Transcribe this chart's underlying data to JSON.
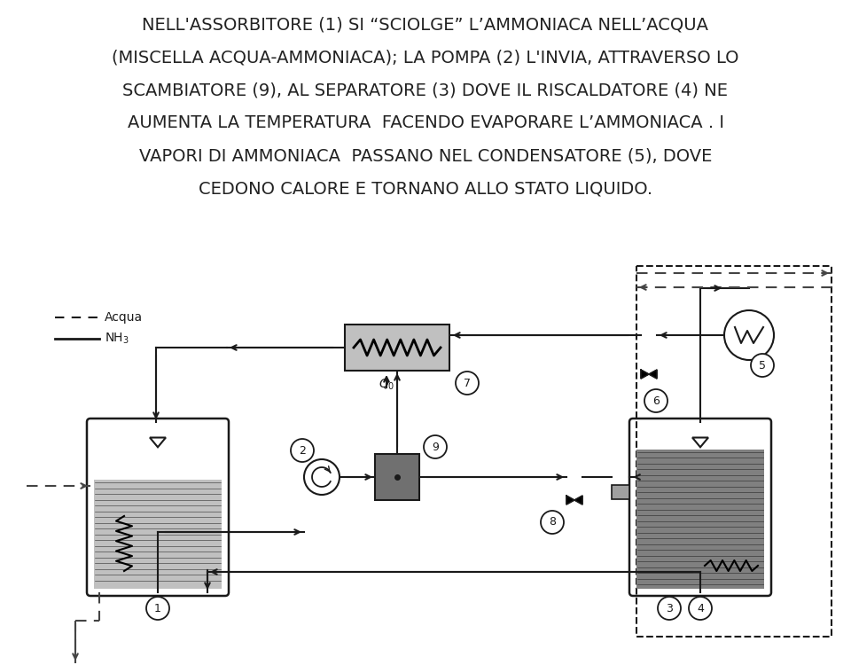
{
  "title_lines": [
    "NELL'ASSORBITORE (1) SI “SCIOLGE” L’AMMONIACA NELL’ACQUA",
    "(MISCELLA ACQUA-AMMONIACA); LA POMPA (2) L'INVIA, ATTRAVERSO LO",
    "SCAMBIATORE (9), AL SEPARATORE (3) DOVE IL RISCALDATORE (4) NE",
    "AUMENTA LA TEMPERATURA  FACENDO EVAPORARE L’AMMONIACA . I",
    "VAPORI DI AMMONIACA  PASSANO NEL CONDENSATORE (5), DOVE",
    "CEDONO CALORE E TORNANO ALLO STATO LIQUIDO."
  ],
  "bg_color": "#ffffff",
  "text_color": "#222222",
  "tank_fill_light": "#c0c0c0",
  "tank_fill_dark": "#808080",
  "box_fill_med": "#a0a0a0",
  "box_fill_dark": "#707070",
  "line_color": "#1a1a1a",
  "dashed_color": "#444444"
}
